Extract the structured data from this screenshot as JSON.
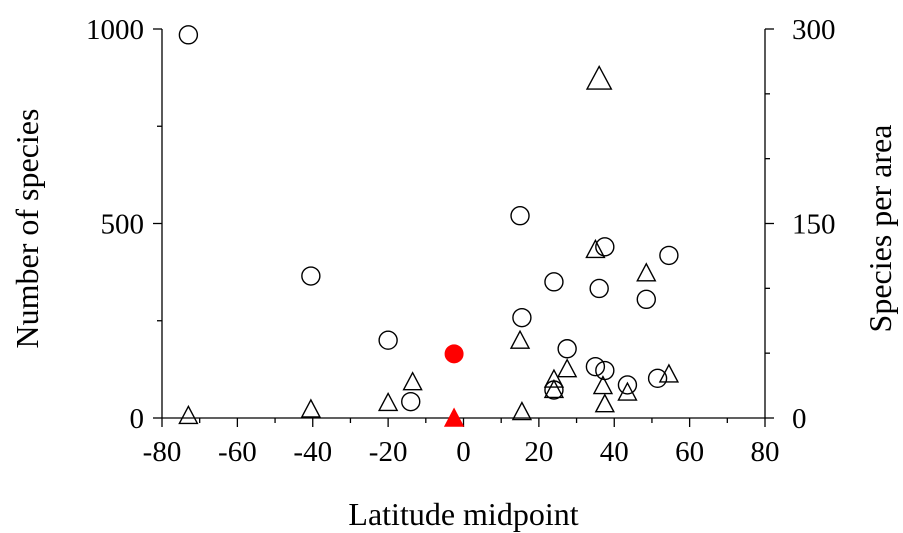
{
  "chart_data": {
    "type": "scatter",
    "xlabel": "Latitude midpoint",
    "ylabel_left": "Number of species",
    "ylabel_right": "Species per area",
    "xlim": [
      -80,
      80
    ],
    "ylim_left": [
      0,
      1000
    ],
    "ylim_right": [
      0,
      300
    ],
    "x_ticks": [
      "-80",
      "-60",
      "-40",
      "-20",
      "0",
      "20",
      "40",
      "60",
      "80"
    ],
    "y_left_ticks": [
      "0",
      "500",
      "1000"
    ],
    "y_right_ticks": [
      "0",
      "150",
      "300"
    ],
    "colors": {
      "open_marker": "#000000",
      "highlight": "#ff0000"
    },
    "series": [
      {
        "marker": "circle-open",
        "axis": "left",
        "points": [
          {
            "x": -73,
            "y": 985
          },
          {
            "x": -40.5,
            "y": 365
          },
          {
            "x": -20,
            "y": 200
          },
          {
            "x": -14,
            "y": 42
          },
          {
            "x": 15,
            "y": 520
          },
          {
            "x": 15.5,
            "y": 258
          },
          {
            "x": 24,
            "y": 350
          },
          {
            "x": 24,
            "y": 72
          },
          {
            "x": 27.5,
            "y": 178
          },
          {
            "x": 35,
            "y": 132
          },
          {
            "x": 36,
            "y": 333
          },
          {
            "x": 37.5,
            "y": 440
          },
          {
            "x": 37.5,
            "y": 122
          },
          {
            "x": 43.5,
            "y": 85
          },
          {
            "x": 48.5,
            "y": 305
          },
          {
            "x": 51.5,
            "y": 102
          },
          {
            "x": 54.5,
            "y": 418
          }
        ]
      },
      {
        "marker": "triangle-open",
        "axis": "right",
        "points": [
          {
            "x": -73,
            "y": 2
          },
          {
            "x": -40.5,
            "y": 7
          },
          {
            "x": -20,
            "y": 12
          },
          {
            "x": -13.5,
            "y": 28
          },
          {
            "x": 15,
            "y": 60
          },
          {
            "x": 15.5,
            "y": 5
          },
          {
            "x": 24,
            "y": 30
          },
          {
            "x": 24,
            "y": 22
          },
          {
            "x": 27.5,
            "y": 38
          },
          {
            "x": 35,
            "y": 130
          },
          {
            "x": 36,
            "y": 262
          },
          {
            "x": 37,
            "y": 25
          },
          {
            "x": 37.5,
            "y": 11
          },
          {
            "x": 43.5,
            "y": 20
          },
          {
            "x": 48.5,
            "y": 112
          },
          {
            "x": 54.5,
            "y": 34
          }
        ]
      },
      {
        "marker": "circle-filled",
        "axis": "left",
        "color": "#ff0000",
        "points": [
          {
            "x": -2.5,
            "y": 165
          }
        ]
      },
      {
        "marker": "triangle-filled",
        "axis": "right",
        "color": "#ff0000",
        "points": [
          {
            "x": -2.5,
            "y": 0
          }
        ]
      }
    ]
  }
}
